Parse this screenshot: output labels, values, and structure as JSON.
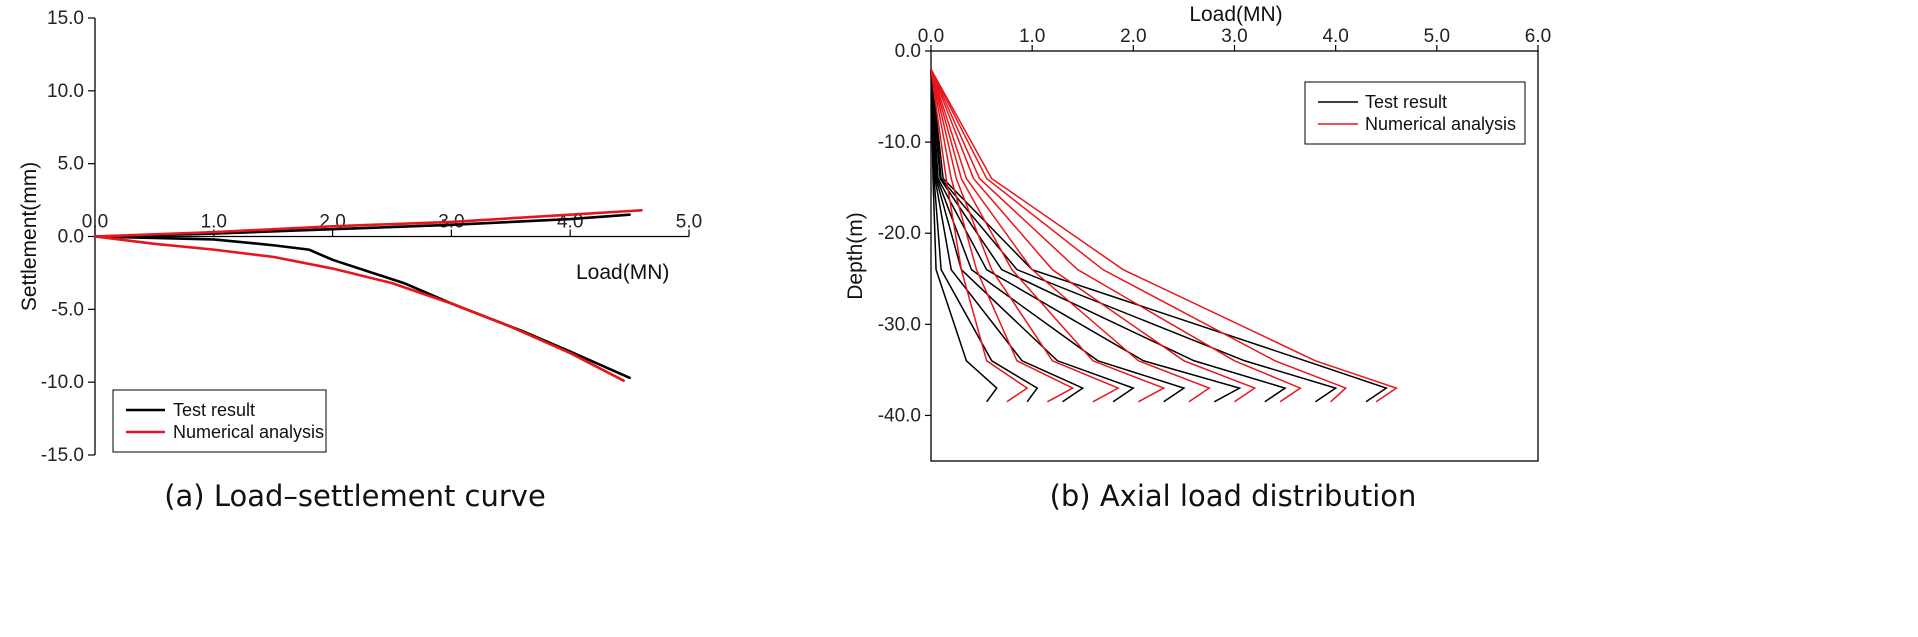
{
  "chart_data": [
    {
      "type": "line",
      "title": "",
      "caption": "(a) Load–settlement curve",
      "xlabel": "Load(MN)",
      "ylabel": "Settlement(mm)",
      "xlim": [
        0,
        5
      ],
      "ylim": [
        -15,
        15
      ],
      "xticks": [
        "0.0",
        "1.0",
        "2.0",
        "3.0",
        "4.0",
        "5.0"
      ],
      "yticks": [
        "15.0",
        "10.0",
        "5.0",
        "0.0",
        "-5.0",
        "-10.0",
        "-15.0"
      ],
      "legend": {
        "position": "bottom-left",
        "entries": [
          "Test result",
          "Numerical analysis"
        ]
      },
      "series": [
        {
          "name": "Test result",
          "color": "#000000",
          "x": [
            0,
            0.5,
            1.0,
            1.5,
            1.8,
            2.0,
            2.6,
            3.0,
            3.6,
            4.0,
            4.5
          ],
          "y": [
            0,
            -0.1,
            -0.2,
            -0.6,
            -0.9,
            -1.6,
            -3.2,
            -4.6,
            -6.5,
            -7.9,
            -9.7
          ]
        },
        {
          "name": "Test result",
          "color": "#000000",
          "x": [
            0,
            1.0,
            2.0,
            3.0,
            4.0,
            4.5
          ],
          "y": [
            0,
            0.2,
            0.5,
            0.8,
            1.2,
            1.5
          ]
        },
        {
          "name": "Numerical analysis",
          "color": "#e8161b",
          "x": [
            0,
            0.5,
            1.0,
            1.5,
            2.0,
            2.5,
            3.0,
            3.5,
            4.0,
            4.45
          ],
          "y": [
            0,
            -0.5,
            -0.9,
            -1.4,
            -2.2,
            -3.2,
            -4.6,
            -6.2,
            -8.0,
            -9.9
          ]
        },
        {
          "name": "Numerical analysis",
          "color": "#e8161b",
          "x": [
            0,
            1.0,
            2.0,
            3.0,
            4.0,
            4.6
          ],
          "y": [
            0,
            0.3,
            0.7,
            1.0,
            1.5,
            1.8
          ]
        }
      ]
    },
    {
      "type": "line",
      "title": "",
      "caption": "(b) Axial load distribution",
      "xlabel": "Load(MN)",
      "ylabel": "Depth(m)",
      "xlim": [
        0,
        6
      ],
      "ylim": [
        -45,
        0
      ],
      "xticks": [
        "0.0",
        "1.0",
        "2.0",
        "3.0",
        "4.0",
        "5.0",
        "6.0"
      ],
      "yticks": [
        "0.0",
        "-10.0",
        "-20.0",
        "-30.0",
        "-40.0"
      ],
      "legend": {
        "position": "top-right",
        "entries": [
          "Test result",
          "Numerical analysis"
        ]
      },
      "depths": [
        -2,
        -14,
        -24,
        -34,
        -37,
        -38.5
      ],
      "series": [
        {
          "name": "Test result",
          "color": "#000000",
          "profiles": [
            [
              0.0,
              0.02,
              0.05,
              0.35,
              0.65,
              0.55
            ],
            [
              0.0,
              0.03,
              0.1,
              0.6,
              1.05,
              0.95
            ],
            [
              0.0,
              0.04,
              0.2,
              0.9,
              1.5,
              1.3
            ],
            [
              0.0,
              0.05,
              0.3,
              1.25,
              2.0,
              1.8
            ],
            [
              0.0,
              0.06,
              0.4,
              1.65,
              2.5,
              2.3
            ],
            [
              0.0,
              0.07,
              0.55,
              2.1,
              3.05,
              2.8
            ],
            [
              0.0,
              0.09,
              0.7,
              2.6,
              3.5,
              3.3
            ],
            [
              0.0,
              0.1,
              0.85,
              3.1,
              4.0,
              3.8
            ],
            [
              0.0,
              0.12,
              1.0,
              3.7,
              4.5,
              4.3
            ]
          ]
        },
        {
          "name": "Numerical analysis",
          "color": "#e8161b",
          "profiles": [
            [
              0.0,
              0.15,
              0.3,
              0.55,
              0.95,
              0.75
            ],
            [
              0.0,
              0.2,
              0.45,
              0.85,
              1.4,
              1.15
            ],
            [
              0.0,
              0.25,
              0.6,
              1.2,
              1.85,
              1.6
            ],
            [
              0.0,
              0.3,
              0.8,
              1.6,
              2.3,
              2.05
            ],
            [
              0.0,
              0.35,
              1.0,
              2.05,
              2.75,
              2.55
            ],
            [
              0.0,
              0.42,
              1.2,
              2.5,
              3.2,
              3.0
            ],
            [
              0.0,
              0.48,
              1.45,
              3.0,
              3.65,
              3.45
            ],
            [
              0.0,
              0.55,
              1.7,
              3.4,
              4.1,
              3.95
            ],
            [
              0.0,
              0.6,
              1.9,
              3.8,
              4.6,
              4.4
            ]
          ]
        }
      ]
    }
  ]
}
